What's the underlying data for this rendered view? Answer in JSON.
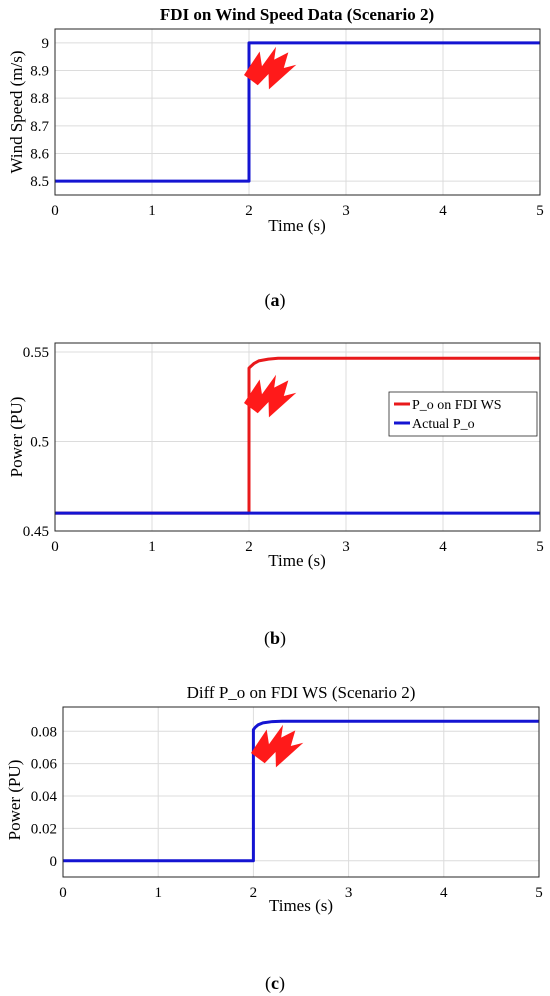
{
  "captions": [
    {
      "open": "(",
      "letter": "a",
      "close": ")"
    },
    {
      "open": "(",
      "letter": "b",
      "close": ")"
    },
    {
      "open": "(",
      "letter": "c",
      "close": ")"
    }
  ],
  "colors": {
    "red": "#e8191b",
    "blue": "#1414d2",
    "bolt": "#ff1a1a"
  },
  "icons": [
    "lightning-bolt-icon"
  ],
  "chart_data": [
    {
      "type": "line",
      "title": "FDI on Wind Speed Data (Scenario 2)",
      "title_bold": true,
      "xlabel": "Time (s)",
      "ylabel": "Wind Speed (m/s)",
      "xlim": [
        0,
        5
      ],
      "ylim": [
        8.45,
        9.05
      ],
      "xticks": [
        0,
        1,
        2,
        3,
        4,
        5
      ],
      "xtick_labels": [
        "0",
        "1",
        "2",
        "3",
        "4",
        "5"
      ],
      "yticks": [
        8.5,
        8.6,
        8.7,
        8.8,
        8.9,
        9
      ],
      "ytick_labels": [
        "8.5",
        "8.6",
        "8.7",
        "8.8",
        "8.9",
        "9"
      ],
      "grid": true,
      "legend": null,
      "series": [
        {
          "color": "#1414d2",
          "x": [
            0,
            2,
            2,
            5
          ],
          "y": [
            8.5,
            8.5,
            9.0,
            9.0
          ]
        }
      ],
      "annotations": [
        "lightning-bolt-icon"
      ]
    },
    {
      "type": "line",
      "title": "",
      "xlabel": "Time (s)",
      "ylabel": "Power (PU)",
      "xlim": [
        0,
        5
      ],
      "ylim": [
        0.45,
        0.555
      ],
      "xticks": [
        0,
        1,
        2,
        3,
        4,
        5
      ],
      "xtick_labels": [
        "0",
        "1",
        "2",
        "3",
        "4",
        "5"
      ],
      "yticks": [
        0.45,
        0.5,
        0.55
      ],
      "ytick_labels": [
        "0.45",
        "0.5",
        "0.55"
      ],
      "grid": true,
      "legend": "center-right",
      "series": [
        {
          "name": "P_o on FDI WS",
          "color": "#e8191b",
          "x": [
            0,
            2,
            2.0,
            2.02,
            2.05,
            2.1,
            2.2,
            2.3,
            2.5,
            5
          ],
          "y": [
            0.46,
            0.46,
            0.541,
            0.542,
            0.5435,
            0.545,
            0.546,
            0.5465,
            0.5465,
            0.5465
          ]
        },
        {
          "name": "Actual P_o",
          "color": "#1414d2",
          "x": [
            0,
            5
          ],
          "y": [
            0.46,
            0.46
          ]
        }
      ],
      "annotations": [
        "lightning-bolt-icon"
      ]
    },
    {
      "type": "line",
      "title": "Diff P_o on FDI WS (Scenario 2)",
      "title_bold": false,
      "xlabel": "Times (s)",
      "ylabel": "Power (PU)",
      "xlim": [
        0,
        5
      ],
      "ylim": [
        -0.01,
        0.095
      ],
      "xticks": [
        0,
        1,
        2,
        3,
        4,
        5
      ],
      "xtick_labels": [
        "0",
        "1",
        "2",
        "3",
        "4",
        "5"
      ],
      "yticks": [
        0,
        0.02,
        0.04,
        0.06,
        0.08
      ],
      "ytick_labels": [
        "0",
        "0.02",
        "0.04",
        "0.06",
        "0.08"
      ],
      "grid": true,
      "legend": null,
      "series": [
        {
          "color": "#1414d2",
          "x": [
            0,
            2,
            2.0,
            2.02,
            2.05,
            2.1,
            2.2,
            2.3,
            2.5,
            5
          ],
          "y": [
            0,
            0,
            0.081,
            0.0825,
            0.084,
            0.0852,
            0.086,
            0.0862,
            0.0862,
            0.0862
          ]
        }
      ],
      "annotations": [
        "lightning-bolt-icon"
      ]
    }
  ]
}
